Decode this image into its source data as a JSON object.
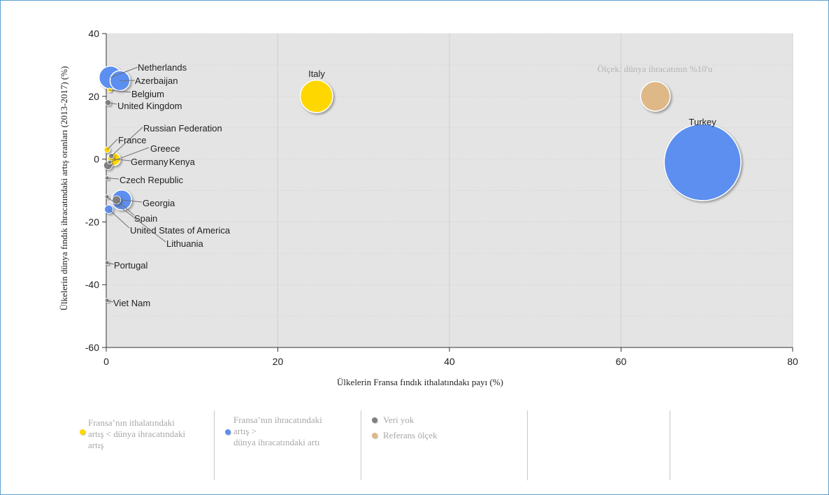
{
  "chart_data": {
    "type": "bubble",
    "xlabel": "Ülkelerin Fransa fındık ithalatındakı payı (%)",
    "ylabel": "Ülkelerin dünya fındık ihracatındaki artış oranları (2013-2017) (%)",
    "xlim": [
      0,
      80
    ],
    "ylim": [
      -60,
      40
    ],
    "xticks": [
      0,
      20,
      40,
      60,
      80
    ],
    "yticks": [
      40,
      20,
      0,
      -20,
      -40,
      -60
    ],
    "grid": true,
    "scale_note": "Ölçek: dünya ihracatının %10'u",
    "scale_bubble": {
      "x": 64,
      "y": 20,
      "size": 10,
      "color": "#deb887"
    },
    "colors": {
      "yellow": "#ffd700",
      "blue": "#5b8ff0",
      "gray": "#808080",
      "reference": "#deb887"
    },
    "points": [
      {
        "label": "Turkey",
        "x": 69.5,
        "y": -1,
        "size": 67,
        "color": "blue"
      },
      {
        "label": "Italy",
        "x": 24.5,
        "y": 20,
        "size": 12,
        "color": "yellow"
      },
      {
        "label": "Netherlands",
        "x": 0.5,
        "y": 26,
        "size": 6,
        "color": "blue"
      },
      {
        "label": "Azerbaijan",
        "x": 1.6,
        "y": 25,
        "size": 4.5,
        "color": "blue"
      },
      {
        "label": "Belgium",
        "x": 0.4,
        "y": 22,
        "size": 0.2,
        "color": "yellow"
      },
      {
        "label": "United Kingdom",
        "x": 0.2,
        "y": 18,
        "size": 0.4,
        "color": "gray"
      },
      {
        "label": "Russian Federation",
        "x": 0.6,
        "y": 1,
        "size": 0.3,
        "color": "gray"
      },
      {
        "label": "France",
        "x": 0.1,
        "y": 3,
        "size": 0.4,
        "color": "yellow"
      },
      {
        "label": "Greece",
        "x": 0.4,
        "y": -1,
        "size": 0.2,
        "color": "gray"
      },
      {
        "label": "Germany",
        "x": 0.9,
        "y": 0,
        "size": 1.8,
        "color": "yellow"
      },
      {
        "label": "Kenya",
        "x": 0.2,
        "y": -2,
        "size": 0.8,
        "color": "gray"
      },
      {
        "label": "Czech Republic",
        "x": 0.1,
        "y": -6,
        "size": 0.2,
        "color": "gray"
      },
      {
        "label": "Georgia",
        "x": 1.8,
        "y": -13,
        "size": 4.5,
        "color": "blue"
      },
      {
        "label": "Spain",
        "x": 1.2,
        "y": -13,
        "size": 0.8,
        "color": "gray"
      },
      {
        "label": "United States of America",
        "x": 0.3,
        "y": -16,
        "size": 0.8,
        "color": "blue"
      },
      {
        "label": "Lithuania",
        "x": 0.1,
        "y": -12,
        "size": 0.2,
        "color": "gray"
      },
      {
        "label": "Portugal",
        "x": 0.1,
        "y": -33,
        "size": 0.2,
        "color": "gray"
      },
      {
        "label": "Viet Nam",
        "x": 0.1,
        "y": -45,
        "size": 0.2,
        "color": "gray"
      }
    ]
  },
  "legend": [
    {
      "text": "Fransa’nın ithalatındaki\nartış < dünya ihracatındaki\nartış",
      "color": "#ffd700"
    },
    {
      "text": "Fransa’nın ihracatındaki\nartış   >\ndünya ihracatındaki artı",
      "color": "#5b8ff0"
    },
    {
      "text": "Veri yok",
      "color": "#808080"
    },
    {
      "text": "Referans ölçek",
      "color": "#deb887"
    }
  ]
}
